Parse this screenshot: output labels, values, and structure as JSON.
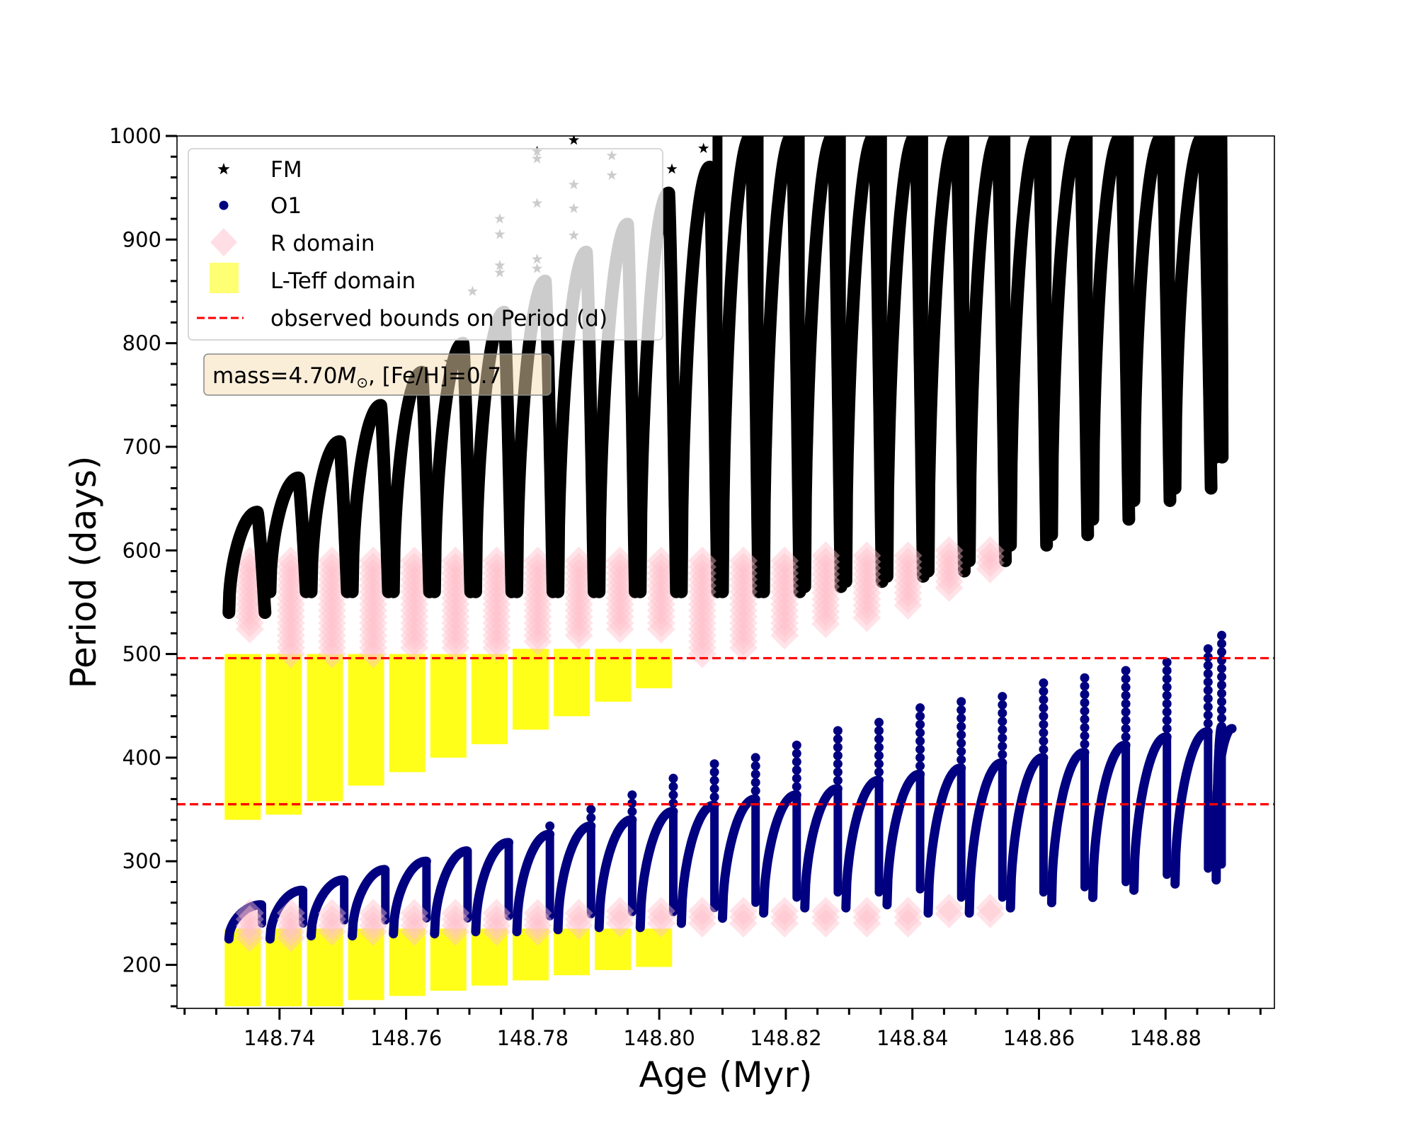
{
  "chart_data": {
    "type": "scatter",
    "title": "",
    "xlabel": "Age (Myr)",
    "ylabel": "Period (days)",
    "xlim": [
      148.7238,
      148.8972
    ],
    "ylim": [
      158,
      1000
    ],
    "x_major_ticks": [
      148.74,
      148.76,
      148.78,
      148.8,
      148.82,
      148.84,
      148.86,
      148.88
    ],
    "x_tick_labels": [
      "148.74",
      "148.76",
      "148.78",
      "148.80",
      "148.82",
      "148.84",
      "148.86",
      "148.88"
    ],
    "x_minor_step": 0.005,
    "y_major_ticks": [
      200,
      300,
      400,
      500,
      600,
      700,
      800,
      900,
      1000
    ],
    "y_tick_labels": [
      "200",
      "300",
      "400",
      "500",
      "600",
      "700",
      "800",
      "900",
      "1000"
    ],
    "y_minor_step": 20,
    "grid": false,
    "legend": {
      "placement": "top-left",
      "entries": [
        {
          "label": "FM",
          "marker": "star",
          "color": "#000000"
        },
        {
          "label": "O1",
          "marker": "circle",
          "color": "#000080"
        },
        {
          "label": "R domain",
          "marker": "diamond",
          "color": "#FFC0CB"
        },
        {
          "label": "L-Teff domain",
          "marker": "square",
          "color": "#FFFF00"
        },
        {
          "label": "observed bounds on Period (d)",
          "marker": "dashed-line",
          "color": "#FF0000"
        }
      ]
    },
    "annotation": {
      "text_prefix": "mass=4.70",
      "text_symbol": "M",
      "text_subscript": "⊙",
      "text_suffix": ", [Fe/H]=0.7",
      "box_color": "#F5DEB3"
    },
    "hlines": [
      {
        "name": "observed-upper-bound",
        "y": 496,
        "color": "#FF0000",
        "style": "dashed"
      },
      {
        "name": "observed-lower-bound",
        "y": 355,
        "color": "#FF0000",
        "style": "dashed"
      }
    ],
    "series_note": "Each blue-loop cycle: period rises from min to peak with age, then drops sharply. Values per cycle in data units.",
    "cycles": [
      {
        "age_start": 148.732,
        "age_end": 148.738,
        "fm_min": 540,
        "fm_peak": 637,
        "o1_min": 225,
        "o1_peak": 258,
        "o1_spike": 258,
        "r_fm": [
          520,
          590
        ],
        "r_o1": [
          225,
          250
        ],
        "lteff_fm": [
          340,
          500
        ],
        "lteff_o1": [
          160,
          235
        ]
      },
      {
        "age_start": 148.7385,
        "age_end": 148.7445,
        "fm_min": 560,
        "fm_peak": 670,
        "o1_min": 225,
        "o1_peak": 272,
        "o1_spike": 272,
        "r_fm": [
          500,
          590
        ],
        "r_o1": [
          225,
          250
        ],
        "lteff_fm": [
          345,
          500
        ],
        "lteff_o1": [
          160,
          235
        ]
      },
      {
        "age_start": 148.745,
        "age_end": 148.751,
        "fm_min": 560,
        "fm_peak": 705,
        "o1_min": 228,
        "o1_peak": 282,
        "o1_spike": 282,
        "r_fm": [
          500,
          590
        ],
        "r_o1": [
          228,
          250
        ],
        "lteff_fm": [
          358,
          500
        ],
        "lteff_o1": [
          160,
          235
        ]
      },
      {
        "age_start": 148.7515,
        "age_end": 148.7575,
        "fm_min": 560,
        "fm_peak": 740,
        "o1_min": 228,
        "o1_peak": 292,
        "o1_spike": 292,
        "r_fm": [
          500,
          590
        ],
        "r_o1": [
          228,
          250
        ],
        "lteff_fm": [
          373,
          500
        ],
        "lteff_o1": [
          166,
          235
        ]
      },
      {
        "age_start": 148.758,
        "age_end": 148.764,
        "fm_min": 560,
        "fm_peak": 772,
        "o1_min": 230,
        "o1_peak": 300,
        "o1_spike": 305,
        "r_fm": [
          505,
          590
        ],
        "r_o1": [
          230,
          250
        ],
        "lteff_fm": [
          386,
          500
        ],
        "lteff_o1": [
          170,
          235
        ]
      },
      {
        "age_start": 148.7645,
        "age_end": 148.7705,
        "fm_min": 560,
        "fm_peak": 800,
        "o1_min": 230,
        "o1_peak": 310,
        "o1_spike": 310,
        "r_fm": [
          505,
          590
        ],
        "r_o1": [
          230,
          250
        ],
        "lteff_fm": [
          400,
          500
        ],
        "lteff_o1": [
          175,
          235
        ]
      },
      {
        "age_start": 148.771,
        "age_end": 148.777,
        "fm_min": 560,
        "fm_peak": 830,
        "o1_min": 232,
        "o1_peak": 318,
        "o1_spike": 322,
        "r_fm": [
          505,
          590
        ],
        "r_o1": [
          232,
          250
        ],
        "lteff_fm": [
          413,
          500
        ],
        "lteff_o1": [
          180,
          235
        ]
      },
      {
        "age_start": 148.7775,
        "age_end": 148.7835,
        "fm_min": 560,
        "fm_peak": 860,
        "o1_min": 232,
        "o1_peak": 326,
        "o1_spike": 340,
        "r_fm": [
          510,
          590
        ],
        "r_o1": [
          232,
          250
        ],
        "lteff_fm": [
          427,
          505
        ],
        "lteff_o1": [
          185,
          235
        ]
      },
      {
        "age_start": 148.784,
        "age_end": 148.79,
        "fm_min": 560,
        "fm_peak": 888,
        "o1_min": 234,
        "o1_peak": 334,
        "o1_spike": 356,
        "r_fm": [
          515,
          590
        ],
        "r_o1": [
          234,
          250
        ],
        "lteff_fm": [
          440,
          505
        ],
        "lteff_o1": [
          190,
          235
        ]
      },
      {
        "age_start": 148.7905,
        "age_end": 148.7965,
        "fm_min": 560,
        "fm_peak": 915,
        "o1_min": 236,
        "o1_peak": 340,
        "o1_spike": 368,
        "r_fm": [
          520,
          590
        ],
        "r_o1": [
          236,
          252
        ],
        "lteff_fm": [
          454,
          505
        ],
        "lteff_o1": [
          195,
          235
        ]
      },
      {
        "age_start": 148.797,
        "age_end": 148.803,
        "fm_min": 560,
        "fm_peak": 945,
        "o1_min": 236,
        "o1_peak": 348,
        "o1_spike": 384,
        "r_fm": [
          520,
          590
        ],
        "r_o1": [
          236,
          252
        ],
        "lteff_fm": [
          467,
          505
        ],
        "lteff_o1": [
          198,
          235
        ]
      },
      {
        "age_start": 148.8035,
        "age_end": 148.8095,
        "fm_min": 560,
        "fm_peak": 970,
        "o1_min": 240,
        "o1_peak": 354,
        "o1_spike": 395,
        "r_fm": [
          495,
          590
        ],
        "r_o1": [
          236,
          252
        ],
        "lteff_fm": null,
        "lteff_o1": null
      },
      {
        "age_start": 148.81,
        "age_end": 148.816,
        "fm_min": 560,
        "fm_peak": 1000,
        "o1_min": 245,
        "o1_peak": 360,
        "o1_spike": 405,
        "r_fm": [
          505,
          590
        ],
        "r_o1": [
          235,
          252
        ],
        "lteff_fm": null,
        "lteff_o1": null
      },
      {
        "age_start": 148.8165,
        "age_end": 148.8225,
        "fm_min": 560,
        "fm_peak": 1000,
        "o1_min": 250,
        "o1_peak": 364,
        "o1_spike": 418,
        "r_fm": [
          515,
          590
        ],
        "r_o1": [
          235,
          252
        ],
        "lteff_fm": null,
        "lteff_o1": null
      },
      {
        "age_start": 148.823,
        "age_end": 148.829,
        "fm_min": 565,
        "fm_peak": 1000,
        "o1_min": 255,
        "o1_peak": 370,
        "o1_spike": 428,
        "r_fm": [
          525,
          595
        ],
        "r_o1": [
          238,
          252
        ],
        "lteff_fm": null,
        "lteff_o1": null
      },
      {
        "age_start": 148.8295,
        "age_end": 148.8355,
        "fm_min": 570,
        "fm_peak": 1000,
        "o1_min": 255,
        "o1_peak": 378,
        "o1_spike": 438,
        "r_fm": [
          535,
          595
        ],
        "r_o1": [
          238,
          252
        ],
        "lteff_fm": null,
        "lteff_o1": null
      },
      {
        "age_start": 148.836,
        "age_end": 148.842,
        "fm_min": 575,
        "fm_peak": 1000,
        "o1_min": 258,
        "o1_peak": 384,
        "o1_spike": 448,
        "r_fm": [
          545,
          595
        ],
        "r_o1": [
          240,
          252
        ],
        "lteff_fm": null,
        "lteff_o1": null
      },
      {
        "age_start": 148.8425,
        "age_end": 148.8485,
        "fm_min": 580,
        "fm_peak": 1000,
        "o1_min": 250,
        "o1_peak": 390,
        "o1_spike": 458,
        "r_fm": [
          560,
          600
        ],
        "r_o1": [
          244,
          255
        ],
        "lteff_fm": null,
        "lteff_o1": null
      },
      {
        "age_start": 148.849,
        "age_end": 148.855,
        "fm_min": 590,
        "fm_peak": 1000,
        "o1_min": 250,
        "o1_peak": 395,
        "o1_spike": 466,
        "r_fm": [
          580,
          600
        ],
        "r_o1": [
          248,
          255
        ],
        "lteff_fm": null,
        "lteff_o1": null
      },
      {
        "age_start": 148.8555,
        "age_end": 148.8615,
        "fm_min": 605,
        "fm_peak": 1000,
        "o1_min": 255,
        "o1_peak": 400,
        "o1_spike": 475,
        "r_fm": null,
        "r_o1": null,
        "lteff_fm": null,
        "lteff_o1": null
      },
      {
        "age_start": 148.862,
        "age_end": 148.868,
        "fm_min": 615,
        "fm_peak": 1000,
        "o1_min": 260,
        "o1_peak": 405,
        "o1_spike": 482,
        "r_fm": null,
        "r_o1": null,
        "lteff_fm": null,
        "lteff_o1": null
      },
      {
        "age_start": 148.8685,
        "age_end": 148.8745,
        "fm_min": 630,
        "fm_peak": 1000,
        "o1_min": 265,
        "o1_peak": 412,
        "o1_spike": 490,
        "r_fm": null,
        "r_o1": null,
        "lteff_fm": null,
        "lteff_o1": null
      },
      {
        "age_start": 148.875,
        "age_end": 148.881,
        "fm_min": 648,
        "fm_peak": 1000,
        "o1_min": 272,
        "o1_peak": 420,
        "o1_spike": 498,
        "r_fm": null,
        "r_o1": null,
        "lteff_fm": null,
        "lteff_o1": null
      },
      {
        "age_start": 148.8815,
        "age_end": 148.8875,
        "fm_min": 660,
        "fm_peak": 1000,
        "o1_min": 278,
        "o1_peak": 425,
        "o1_spike": 508,
        "r_fm": null,
        "r_o1": null,
        "lteff_fm": null,
        "lteff_o1": null
      },
      {
        "age_start": 148.888,
        "age_end": 148.889,
        "fm_min": 690,
        "fm_peak": 1000,
        "o1_min": 282,
        "o1_peak": 430,
        "o1_spike": 520,
        "r_fm": null,
        "r_o1": null,
        "lteff_fm": null,
        "lteff_o1": null
      }
    ],
    "o1_final_segment": {
      "age_start": 148.888,
      "age_end": 148.8905,
      "p_start": 340,
      "p_end": 428
    },
    "stray_fm_points": [
      {
        "x": 148.7668,
        "y": 782
      },
      {
        "x": 148.7705,
        "y": 850
      },
      {
        "x": 148.7748,
        "y": 920
      },
      {
        "x": 148.7748,
        "y": 905
      },
      {
        "x": 148.7748,
        "y": 875
      },
      {
        "x": 148.7748,
        "y": 868
      },
      {
        "x": 148.7807,
        "y": 985
      },
      {
        "x": 148.7807,
        "y": 978
      },
      {
        "x": 148.7807,
        "y": 935
      },
      {
        "x": 148.7807,
        "y": 881
      },
      {
        "x": 148.7807,
        "y": 872
      },
      {
        "x": 148.7865,
        "y": 996
      },
      {
        "x": 148.7865,
        "y": 953
      },
      {
        "x": 148.7865,
        "y": 930
      },
      {
        "x": 148.7865,
        "y": 904
      },
      {
        "x": 148.7925,
        "y": 981
      },
      {
        "x": 148.7925,
        "y": 962
      },
      {
        "x": 148.802,
        "y": 968
      },
      {
        "x": 148.807,
        "y": 988
      }
    ]
  }
}
